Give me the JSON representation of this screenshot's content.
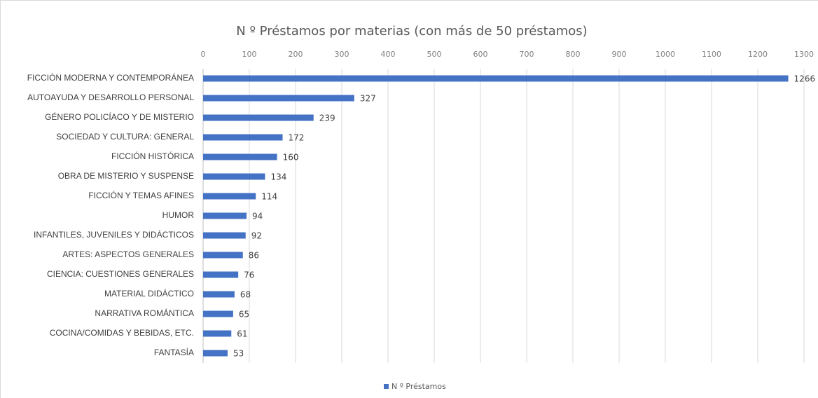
{
  "chart_data": {
    "type": "bar",
    "orientation": "horizontal",
    "title": "N º Préstamos por materias (con más de 50 préstamos)",
    "categories": [
      "FICCIÓN MODERNA Y CONTEMPORÁNEA",
      "AUTOAYUDA Y DESARROLLO PERSONAL",
      "GÉNERO POLICÍACO Y DE MISTERIO",
      "SOCIEDAD Y CULTURA: GENERAL",
      "FICCIÓN HISTÓRICA",
      "OBRA DE MISTERIO Y SUSPENSE",
      "FICCIÓN Y TEMAS AFINES",
      "HUMOR",
      "INFANTILES, JUVENILES Y DIDÁCTICOS",
      "ARTES: ASPECTOS GENERALES",
      "CIENCIA: CUESTIONES GENERALES",
      "MATERIAL DIDÁCTICO",
      "NARRATIVA ROMÁNTICA",
      "COCINA/COMIDAS Y BEBIDAS, ETC.",
      "FANTASÍA"
    ],
    "series": [
      {
        "name": "N º Préstamos",
        "color": "#4472c4",
        "values": [
          1266,
          327,
          239,
          172,
          160,
          134,
          114,
          94,
          92,
          86,
          76,
          68,
          65,
          61,
          53
        ]
      }
    ],
    "xlim": [
      0,
      1300
    ],
    "xticks": [
      0,
      100,
      200,
      300,
      400,
      500,
      600,
      700,
      800,
      900,
      1000,
      1100,
      1200,
      1300
    ],
    "grid": true,
    "legend": "bottom"
  }
}
